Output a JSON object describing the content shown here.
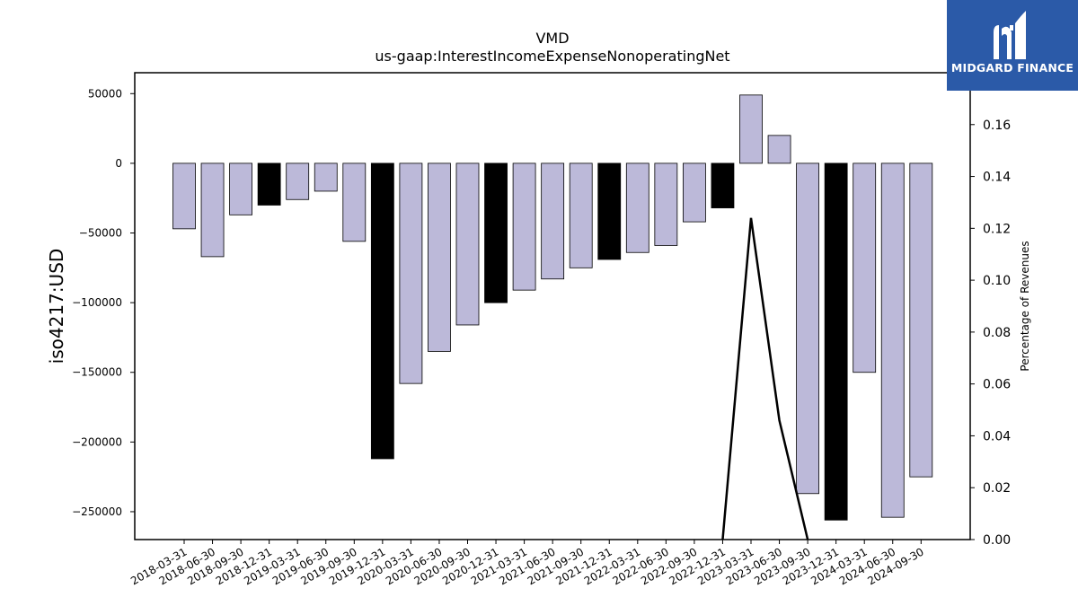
{
  "chart_data": {
    "type": "bar",
    "title": "VMD",
    "subtitle": "us-gaap:InterestIncomeExpenseNonoperatingNet",
    "ylabel": "iso4217:USD",
    "y2label": "Percentage of Revenues",
    "ylim": [
      -270000,
      65000
    ],
    "y2lim": [
      0.0,
      0.18
    ],
    "yticks": [
      50000,
      0,
      -50000,
      -100000,
      -150000,
      -200000,
      -250000
    ],
    "y2ticks": [
      0.0,
      0.02,
      0.04,
      0.06,
      0.08,
      0.1,
      0.12,
      0.14,
      0.16
    ],
    "categories": [
      "2018-03-31",
      "2018-06-30",
      "2018-09-30",
      "2018-12-31",
      "2019-03-31",
      "2019-06-30",
      "2019-09-30",
      "2019-12-31",
      "2020-03-31",
      "2020-06-30",
      "2020-09-30",
      "2020-12-31",
      "2021-03-31",
      "2021-06-30",
      "2021-09-30",
      "2021-12-31",
      "2022-03-31",
      "2022-06-30",
      "2022-09-30",
      "2022-12-31",
      "2023-03-31",
      "2023-06-30",
      "2023-09-30",
      "2023-12-31",
      "2024-03-31",
      "2024-06-30",
      "2024-09-30"
    ],
    "values": [
      -47000,
      -67000,
      -37000,
      -30000,
      -26000,
      -20000,
      -56000,
      -212000,
      -158000,
      -135000,
      -116000,
      -100000,
      -91000,
      -83000,
      -75000,
      -69000,
      -64000,
      -59000,
      -42000,
      -32000,
      49000,
      20000,
      -237000,
      -256000,
      -150000,
      -254000,
      -225000
    ],
    "highlight": [
      false,
      false,
      false,
      true,
      false,
      false,
      false,
      true,
      false,
      false,
      false,
      true,
      false,
      false,
      false,
      true,
      false,
      false,
      false,
      true,
      false,
      false,
      false,
      true,
      false,
      false,
      false
    ],
    "colors": {
      "bar": "#bcb9d9",
      "highlight_bar": "#000000",
      "line": "#000000"
    },
    "line_series": {
      "x_index": [
        19,
        20,
        21,
        22
      ],
      "values": [
        0.0,
        0.124,
        0.046,
        0.0
      ]
    },
    "grid": false
  },
  "logo": {
    "text": "MIDGARD FINANCE"
  }
}
